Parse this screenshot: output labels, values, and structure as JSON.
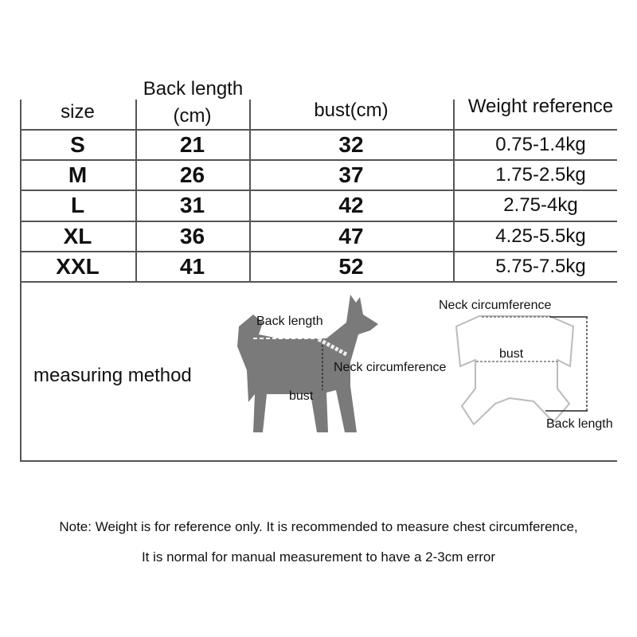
{
  "table": {
    "headers": [
      "size",
      "Back length\n(cm)",
      "bust(cm)",
      "Weight reference"
    ],
    "header_back_line1": "Back length",
    "header_back_line2": "(cm)",
    "rows": [
      {
        "size": "S",
        "back": "21",
        "bust": "32",
        "weight": "0.75-1.4kg"
      },
      {
        "size": "M",
        "back": "26",
        "bust": "37",
        "weight": "1.75-2.5kg"
      },
      {
        "size": "L",
        "back": "31",
        "bust": "42",
        "weight": "2.75-4kg"
      },
      {
        "size": "XL",
        "back": "36",
        "bust": "47",
        "weight": "4.25-5.5kg"
      },
      {
        "size": "XXL",
        "back": "41",
        "bust": "52",
        "weight": "5.75-7.5kg"
      }
    ]
  },
  "measuring": {
    "label": "measuring method",
    "dog": {
      "back": "Back length",
      "neck": "Neck circumference",
      "bust": "bust"
    },
    "garment": {
      "neck": "Neck circumference",
      "bust": "bust",
      "back": "Back length"
    },
    "silhouette_color": "#7a7a7a"
  },
  "notes": [
    "Note: Weight is for reference only. It is recommended to measure chest circumference,",
    "It is normal for manual measurement to have a 2-3cm error"
  ]
}
